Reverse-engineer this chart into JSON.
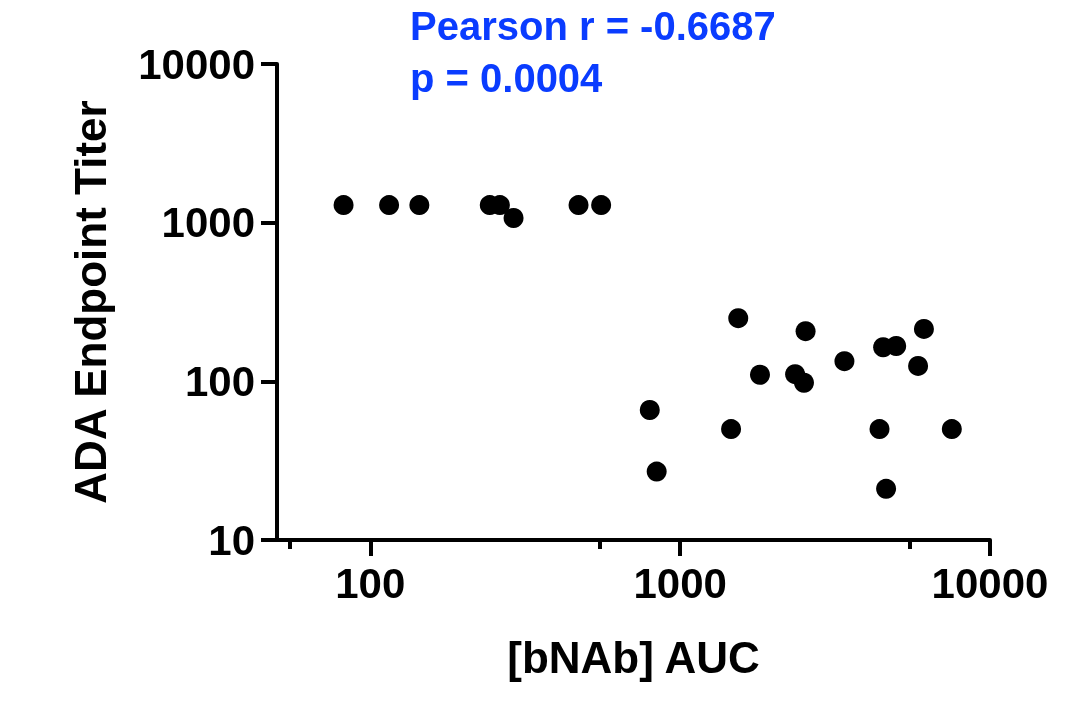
{
  "chart_data": {
    "type": "scatter",
    "xlabel": "[bNAb] AUC",
    "ylabel": "ADA Endpoint Titer",
    "annotations": [
      "Pearson r = -0.6687",
      "p = 0.0004"
    ],
    "x": [
      82,
      115,
      144,
      243,
      262,
      290,
      470,
      556,
      798,
      840,
      1460,
      1540,
      1810,
      2350,
      2510,
      2540,
      3390,
      4400,
      4520,
      4620,
      4980,
      5860,
      6120,
      7530
    ],
    "series": [
      {
        "color": "#000000",
        "values": [
          1290,
          1290,
          1290,
          1290,
          1290,
          1070,
          1290,
          1290,
          66,
          27,
          50,
          250,
          110,
          111,
          98,
          207,
          134,
          50,
          164,
          21,
          167,
          125,
          214,
          50
        ]
      }
    ],
    "log": "xy",
    "xlim": [
      50,
      10000
    ],
    "ylim": [
      10,
      10000
    ],
    "xticks": [
      {
        "value": 55,
        "label": null
      },
      100,
      {
        "value": 550,
        "label": null
      },
      1000,
      {
        "value": 5500,
        "label": null
      },
      10000
    ],
    "yticks": [
      10,
      100,
      1000,
      10000
    ],
    "grid": false,
    "marker": "circle"
  }
}
